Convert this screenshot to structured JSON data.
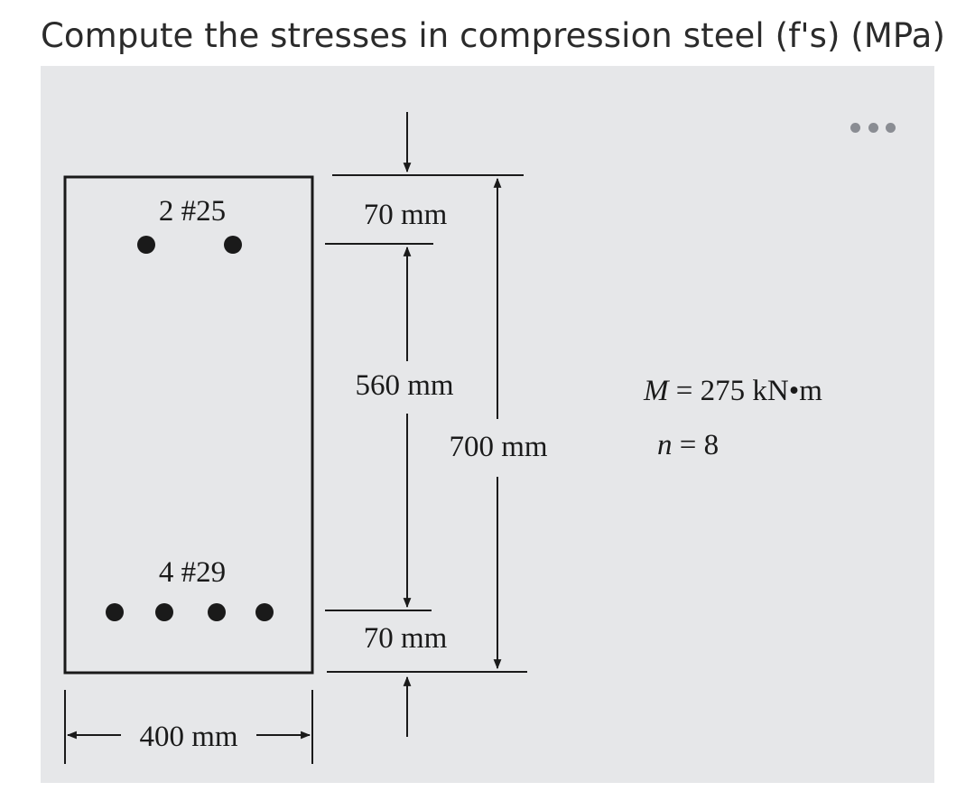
{
  "question": {
    "text": "Compute the stresses in compression steel (f's) (MPa)"
  },
  "toolbar": {
    "more_icon": "ellipsis-horizontal-icon"
  },
  "diagram": {
    "labels": {
      "top_bars": "2 #25",
      "bottom_bars": "4 #29",
      "width": "400 mm",
      "top_cover": "70 mm",
      "middle_span": "560 mm",
      "total_depth": "700 mm",
      "bottom_cover": "70 mm"
    },
    "given": {
      "moment": "M = 275 kN•m",
      "modular_ratio": "n = 8"
    },
    "colors": {
      "ink": "#1a1a1a",
      "panel": "#e6e7e9"
    }
  }
}
